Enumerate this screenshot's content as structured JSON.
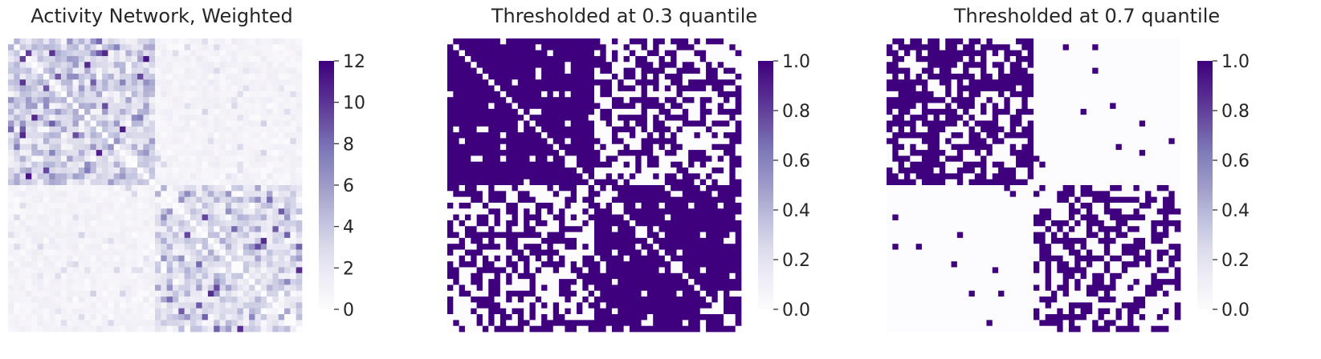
{
  "chart_data": [
    {
      "type": "heatmap",
      "title": "Activity Network, Weighted",
      "n_nodes": 50,
      "communities": [
        25,
        25
      ],
      "value_range": [
        0,
        12
      ],
      "colormap": "Purples",
      "colorbar": {
        "ticks": [
          0,
          2,
          4,
          6,
          8,
          10,
          12
        ],
        "labels": [
          "0",
          "2",
          "4",
          "6",
          "8",
          "10",
          "12"
        ]
      },
      "xlabel": "",
      "ylabel": "",
      "grid": false
    },
    {
      "type": "heatmap",
      "title": "Thresholded at 0.3 quantile",
      "n_nodes": 50,
      "threshold_quantile": 0.3,
      "value_range": [
        0,
        1
      ],
      "colormap": "Purples",
      "colorbar": {
        "ticks": [
          0,
          0.2,
          0.4,
          0.6,
          0.8,
          1.0
        ],
        "labels": [
          "0.0",
          "0.2",
          "0.4",
          "0.6",
          "0.8",
          "1.0"
        ]
      },
      "xlabel": "",
      "ylabel": "",
      "grid": false
    },
    {
      "type": "heatmap",
      "title": "Thresholded at 0.7 quantile",
      "n_nodes": 50,
      "threshold_quantile": 0.7,
      "value_range": [
        0,
        1
      ],
      "colormap": "Purples",
      "colorbar": {
        "ticks": [
          0,
          0.2,
          0.4,
          0.6,
          0.8,
          1.0
        ],
        "labels": [
          "0.0",
          "0.2",
          "0.4",
          "0.6",
          "0.8",
          "1.0"
        ]
      },
      "xlabel": "",
      "ylabel": "",
      "grid": false
    }
  ],
  "colors": {
    "colormap_low": "#fcfbfd",
    "colormap_high": "#3f007d",
    "text": "#262626"
  }
}
